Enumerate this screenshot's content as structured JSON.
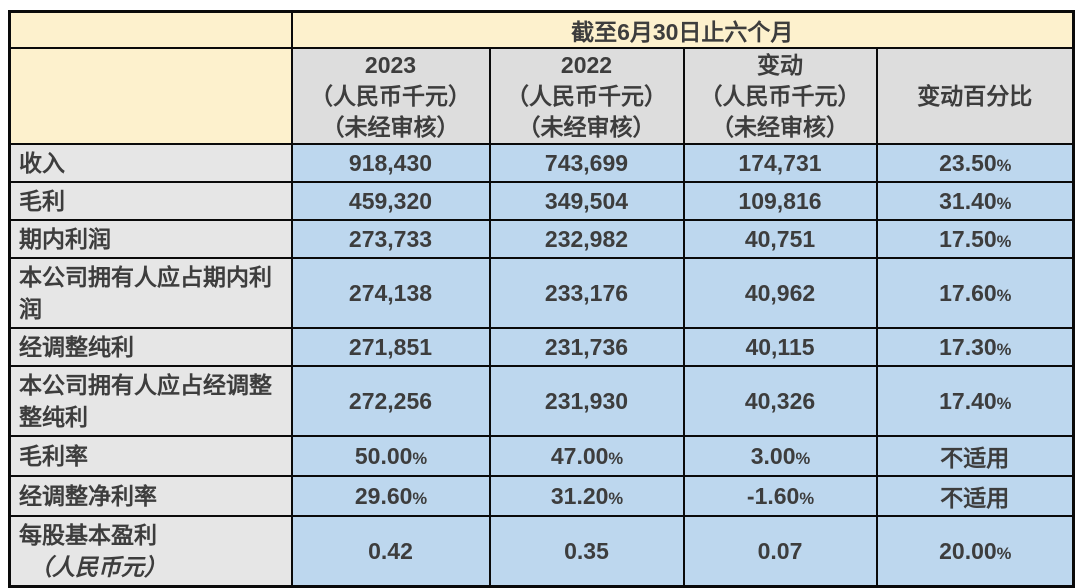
{
  "table": {
    "top_header": "截至6月30日止六个月",
    "columns": [
      {
        "line1": "2023",
        "line2": "（人民币千元）",
        "line3": "（未经审核）"
      },
      {
        "line1": "2022",
        "line2": "（人民币千元）",
        "line3": "（未经审核）"
      },
      {
        "line1": "变动",
        "line2": "（人民币千元）",
        "line3": "（未经审核）"
      },
      {
        "line1": "变动百分比"
      }
    ],
    "rows": [
      {
        "label": "收入",
        "values": [
          "918,430",
          "743,699",
          "174,731",
          "23.50%"
        ]
      },
      {
        "label": "毛利",
        "values": [
          "459,320",
          "349,504",
          "109,816",
          "31.40%"
        ]
      },
      {
        "label": "期内利润",
        "values": [
          "273,733",
          "232,982",
          "40,751",
          "17.50%"
        ]
      },
      {
        "label": "本公司拥有人应占期内利润",
        "values": [
          "274,138",
          "233,176",
          "40,962",
          "17.60%"
        ]
      },
      {
        "label": "经调整纯利",
        "values": [
          "271,851",
          "231,736",
          "40,115",
          "17.30%"
        ]
      },
      {
        "label": "本公司拥有人应占经调整整纯利",
        "values": [
          "272,256",
          "231,930",
          "40,326",
          "17.40%"
        ]
      },
      {
        "label": "毛利率",
        "values": [
          "50.00%",
          "47.00%",
          "3.00%",
          "不适用"
        ]
      },
      {
        "label": "经调整净利率",
        "values": [
          "29.60%",
          "31.20%",
          "-1.60%",
          "不适用"
        ]
      },
      {
        "label": "每股基本盈利",
        "sublabel": "（人民币元）",
        "values": [
          "0.42",
          "0.35",
          "0.07",
          "20.00%"
        ]
      }
    ],
    "colors": {
      "header_cream": "#fdf1cd",
      "column_header_gray": "#dddddd",
      "row_label_gray": "#e6e6e6",
      "data_cell_blue": "#bdd7ee",
      "border_black": "#0a0a0a",
      "text_dark_gray": "#3d3d3d"
    }
  }
}
